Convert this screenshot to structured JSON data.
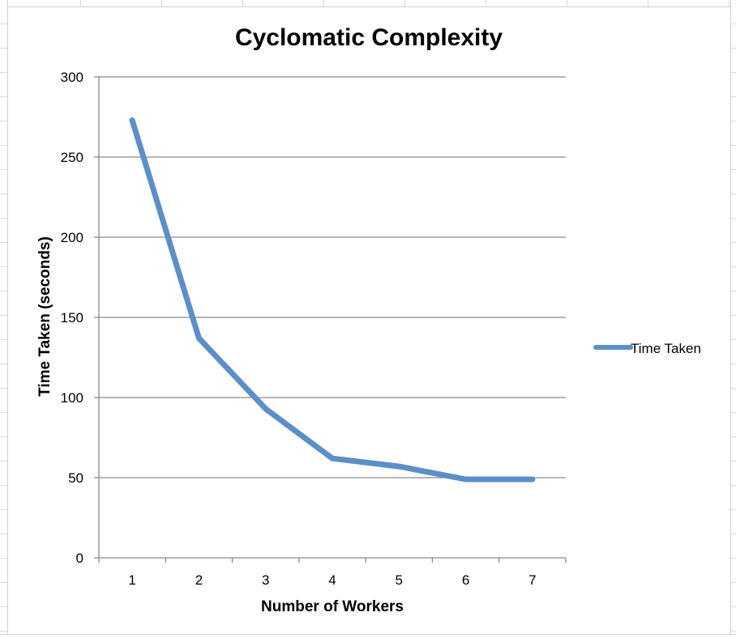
{
  "chart_data": {
    "type": "line",
    "title": "Cyclomatic Complexity",
    "xlabel": "Number of Workers",
    "ylabel": "Time Taken (seconds)",
    "categories": [
      "1",
      "2",
      "3",
      "4",
      "5",
      "6",
      "7"
    ],
    "series": [
      {
        "name": "Time Taken",
        "values": [
          273,
          137,
          93,
          62,
          57,
          49,
          49
        ],
        "color": "#5b8fc7"
      }
    ],
    "ylim": [
      0,
      300
    ],
    "yticks": [
      0,
      50,
      100,
      150,
      200,
      250,
      300
    ],
    "grid": true,
    "legend": "right"
  }
}
